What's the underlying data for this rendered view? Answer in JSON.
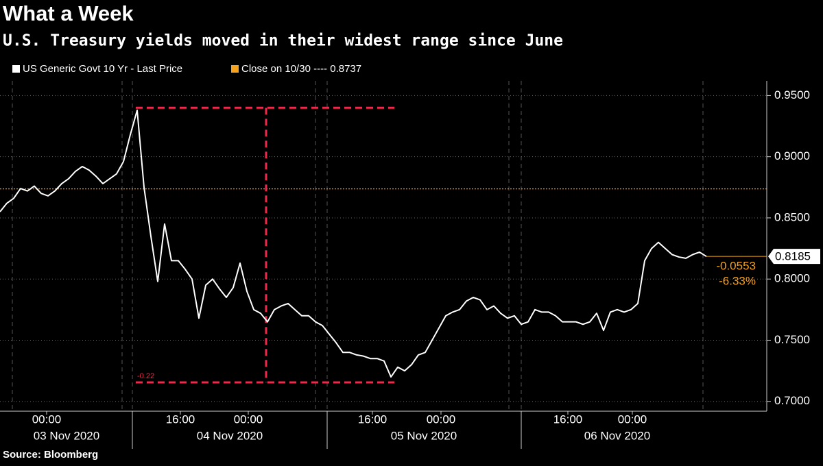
{
  "chart_data": {
    "type": "line",
    "title": "What a Week",
    "subtitle": "U.S. Treasury yields moved in their widest range since June",
    "source": "Source: Bloomberg",
    "series": [
      {
        "name": "US Generic Govt 10 Yr - Last Price",
        "color": "#ffffff",
        "values": [
          0.855,
          0.862,
          0.866,
          0.874,
          0.872,
          0.876,
          0.87,
          0.868,
          0.872,
          0.878,
          0.882,
          0.888,
          0.892,
          0.889,
          0.884,
          0.878,
          0.882,
          0.886,
          0.896,
          0.918,
          0.938,
          0.875,
          0.835,
          0.798,
          0.845,
          0.815,
          0.815,
          0.808,
          0.8,
          0.768,
          0.795,
          0.8,
          0.792,
          0.785,
          0.793,
          0.813,
          0.79,
          0.775,
          0.772,
          0.765,
          0.775,
          0.778,
          0.78,
          0.775,
          0.77,
          0.77,
          0.765,
          0.762,
          0.755,
          0.748,
          0.74,
          0.74,
          0.738,
          0.737,
          0.735,
          0.735,
          0.733,
          0.72,
          0.728,
          0.725,
          0.73,
          0.738,
          0.74,
          0.75,
          0.76,
          0.77,
          0.773,
          0.775,
          0.782,
          0.785,
          0.783,
          0.775,
          0.778,
          0.772,
          0.768,
          0.77,
          0.763,
          0.765,
          0.775,
          0.773,
          0.773,
          0.77,
          0.765,
          0.765,
          0.765,
          0.763,
          0.765,
          0.772,
          0.758,
          0.773,
          0.775,
          0.773,
          0.775,
          0.78,
          0.815,
          0.825,
          0.83,
          0.825,
          0.82,
          0.818,
          0.817,
          0.82,
          0.822,
          0.8185
        ],
        "last_value_label": "0.8185"
      }
    ],
    "reference_line": {
      "label": "Close on 10/30 ---- 0.8737",
      "value": 0.8737,
      "color": "#f7a21b"
    },
    "change_labels": [
      "-0.0553",
      "-6.33%"
    ],
    "range_annotation": {
      "label": "-0.22",
      "high": 0.94,
      "low": 0.7155,
      "color": "#f0284a"
    },
    "xlim": [
      0,
      111.8
    ],
    "xticks": [
      {
        "value": 6.8,
        "label": "00:00"
      },
      {
        "value": 26.3,
        "label": "16:00"
      },
      {
        "value": 36.2,
        "label": "00:00"
      },
      {
        "value": 54.3,
        "label": "16:00"
      },
      {
        "value": 64.3,
        "label": "00:00"
      },
      {
        "value": 82.8,
        "label": "16:00"
      },
      {
        "value": 92.2,
        "label": "00:00"
      }
    ],
    "date_labels": [
      {
        "value": 9.7,
        "label": "03 Nov 2020"
      },
      {
        "value": 33.5,
        "label": "04 Nov 2020"
      },
      {
        "value": 61.8,
        "label": "05 Nov 2020"
      },
      {
        "value": 90.0,
        "label": "06 Nov 2020"
      }
    ],
    "ylim": [
      0.692,
      0.962
    ],
    "yticks": [
      {
        "value": 0.7,
        "label": "0.7000"
      },
      {
        "value": 0.75,
        "label": "0.7500"
      },
      {
        "value": 0.8,
        "label": "0.8000"
      },
      {
        "value": 0.85,
        "label": "0.8500"
      },
      {
        "value": 0.9,
        "label": "0.9000"
      },
      {
        "value": 0.95,
        "label": "0.9500"
      }
    ],
    "grid": true
  }
}
